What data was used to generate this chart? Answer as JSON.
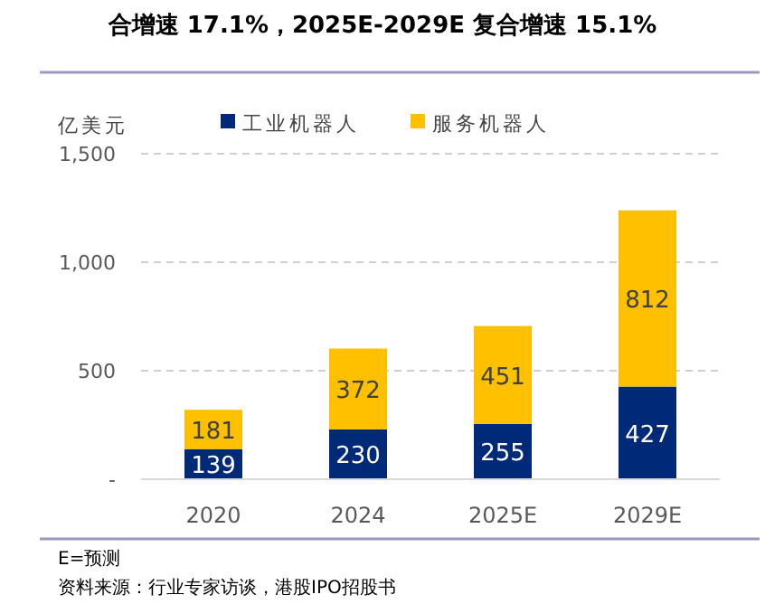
{
  "chart_data": {
    "type": "bar",
    "stacked": true,
    "title": "合增速 17.1%，2025E-2029E 复合增速 15.1%",
    "ylabel": "亿美元",
    "categories": [
      "2020",
      "2024",
      "2025E",
      "2029E"
    ],
    "series": [
      {
        "name": "工业机器人",
        "color": "#002a78",
        "values": [
          139,
          230,
          255,
          427
        ]
      },
      {
        "name": "服务机器人",
        "color": "#ffc000",
        "values": [
          181,
          372,
          451,
          812
        ]
      }
    ],
    "ylim": [
      0,
      1500
    ],
    "yticks": [
      {
        "value": 0,
        "label": "-"
      },
      {
        "value": 500,
        "label": "500"
      },
      {
        "value": 1000,
        "label": "1,000"
      },
      {
        "value": 1500,
        "label": "1,500"
      }
    ],
    "grid": "y",
    "legend": "top",
    "data_labels": true,
    "annotations": [
      "E=预测",
      "资料来源：行业专家访谈，港股IPO招股书"
    ]
  }
}
